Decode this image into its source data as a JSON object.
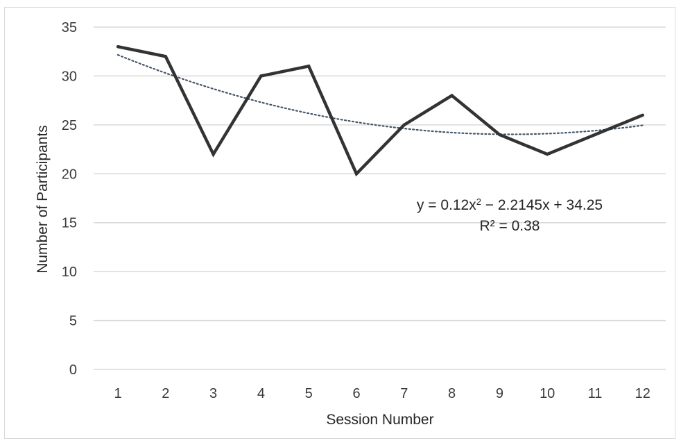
{
  "chart_data": {
    "type": "line",
    "title": "",
    "xlabel": "Session Number",
    "ylabel": "Number of Participants",
    "categories": [
      "1",
      "2",
      "3",
      "4",
      "5",
      "6",
      "7",
      "8",
      "9",
      "10",
      "11",
      "12"
    ],
    "x": [
      1,
      2,
      3,
      4,
      5,
      6,
      7,
      8,
      9,
      10,
      11,
      12
    ],
    "series": [
      {
        "values": [
          33,
          32,
          22,
          30,
          31,
          20,
          25,
          28,
          24,
          22,
          24,
          26
        ],
        "color": "#333333"
      }
    ],
    "trendline": {
      "type": "polynomial",
      "order": 2,
      "coefficients": {
        "a": 0.12,
        "b": -2.2145,
        "c": 34.25
      },
      "equation_parts": {
        "lhs": "y = 0.12x",
        "exponent": "2",
        "rhs": " − 2.2145x + 34.25"
      },
      "r_squared_label": "R² = 0.38",
      "color": "#44546a"
    },
    "yticks": [
      "0",
      "5",
      "10",
      "15",
      "20",
      "25",
      "30",
      "35"
    ],
    "ylim": [
      0,
      35
    ],
    "grid": true,
    "legend": "none"
  }
}
